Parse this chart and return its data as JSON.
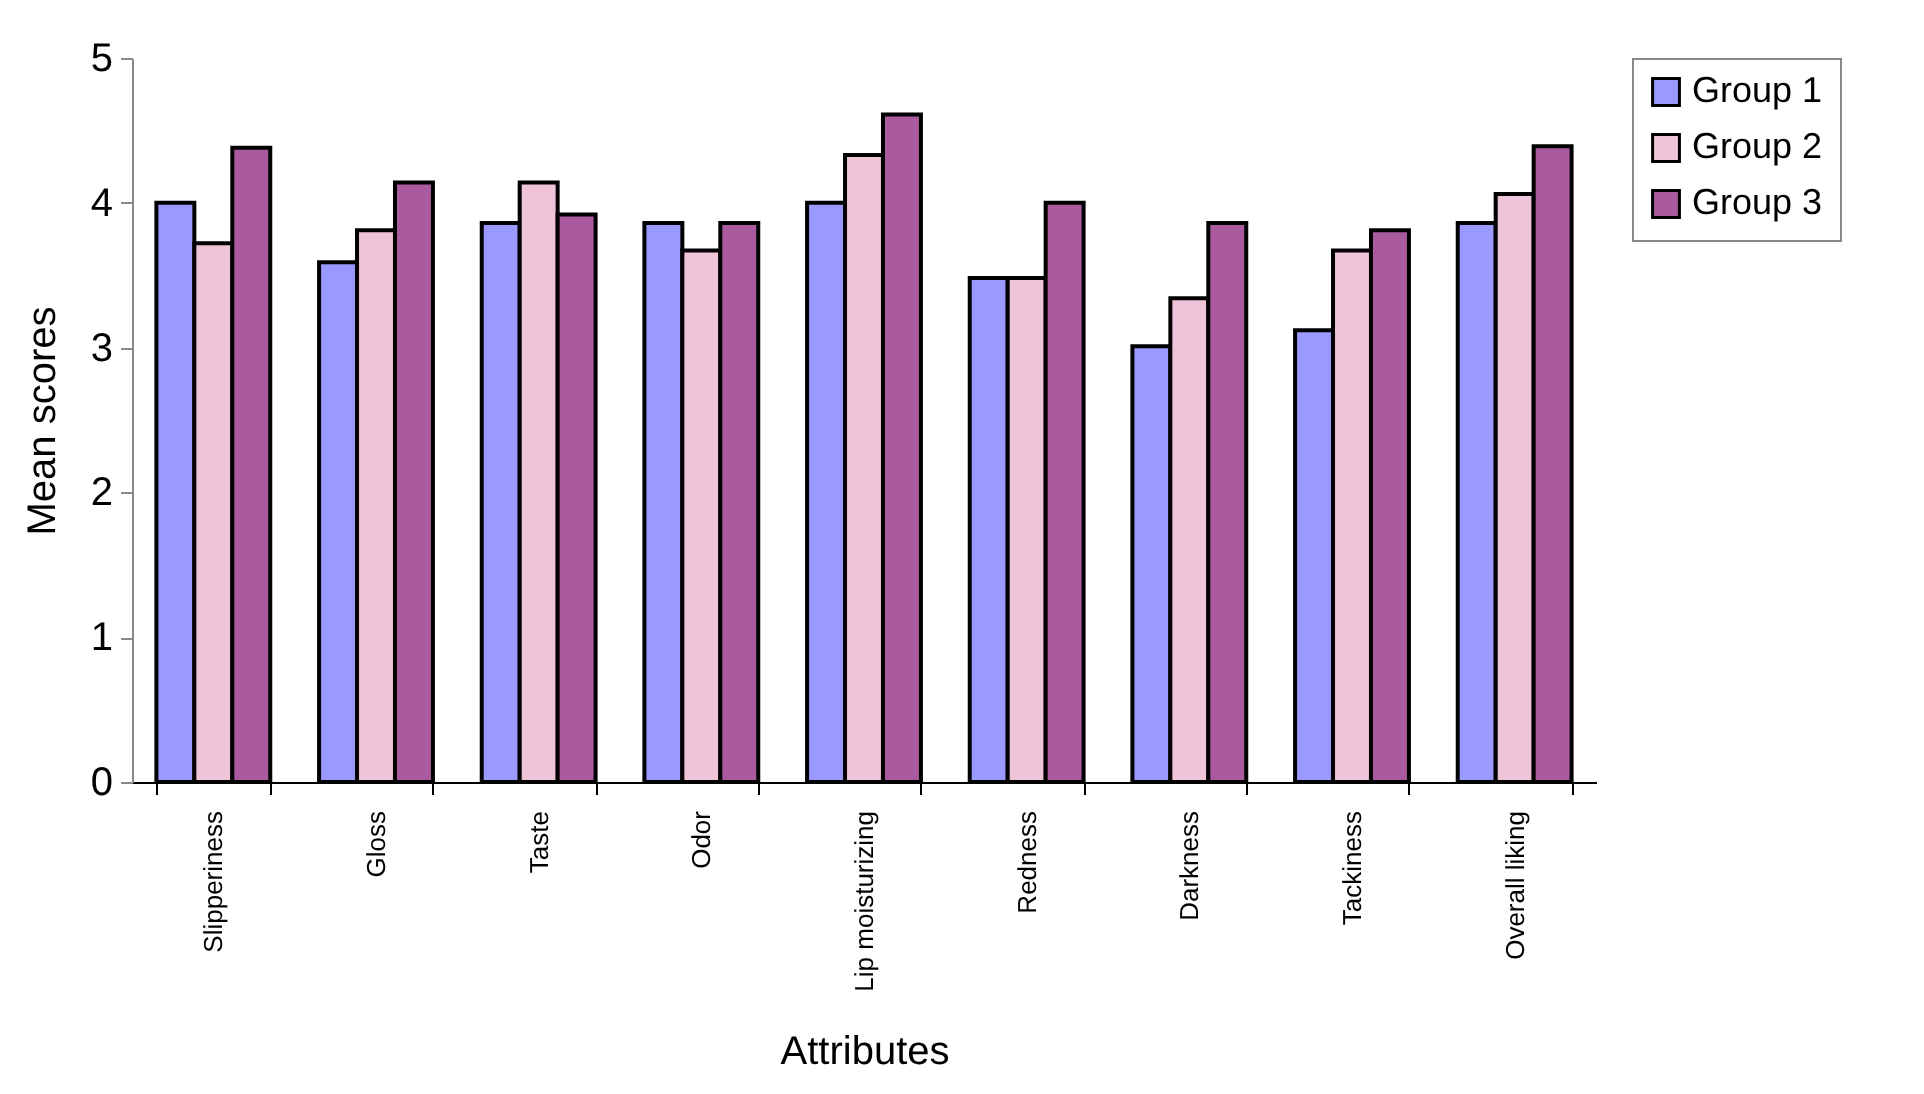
{
  "chart_data": {
    "type": "bar",
    "xlabel": "Attributes",
    "ylabel": "Mean scores",
    "categories": [
      "Slipperiness",
      "Gloss",
      "Taste",
      "Odor",
      "Lip moisturizing",
      "Redness",
      "Darkness",
      "Tackiness",
      "Overall liking"
    ],
    "series": [
      {
        "name": "Group 1",
        "color": "#9999ff",
        "values": [
          4.0,
          3.59,
          3.86,
          3.86,
          4.0,
          3.48,
          3.01,
          3.12,
          3.86
        ]
      },
      {
        "name": "Group 2",
        "color": "#f0c4d8",
        "values": [
          3.72,
          3.81,
          4.14,
          3.67,
          4.33,
          3.48,
          3.34,
          3.67,
          4.06
        ]
      },
      {
        "name": "Group 3",
        "color": "#aa5a9e",
        "values": [
          4.38,
          4.14,
          3.92,
          3.86,
          4.61,
          4.0,
          3.86,
          3.81,
          4.39
        ]
      }
    ],
    "ylim": [
      0,
      5
    ],
    "yticks": [
      0,
      1,
      2,
      3,
      4,
      5
    ],
    "grid": false,
    "legend": "right"
  }
}
